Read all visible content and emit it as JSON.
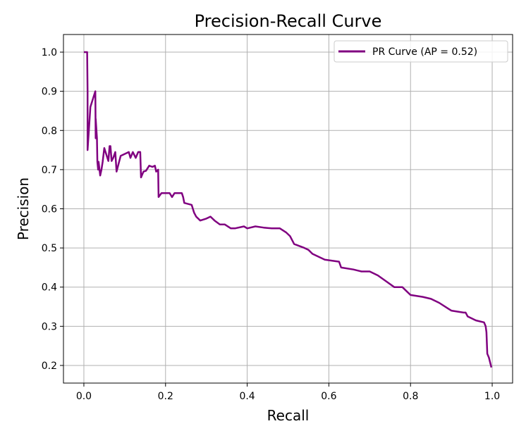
{
  "chart_data": {
    "type": "line",
    "title": "Precision-Recall Curve",
    "xlabel": "Recall",
    "ylabel": "Precision",
    "xlim": [
      -0.05,
      1.05
    ],
    "ylim": [
      0.155,
      1.045
    ],
    "xticks": [
      0.0,
      0.2,
      0.4,
      0.6,
      0.8,
      1.0
    ],
    "xtick_labels": [
      "0.0",
      "0.2",
      "0.4",
      "0.6",
      "0.8",
      "1.0"
    ],
    "yticks": [
      0.2,
      0.3,
      0.4,
      0.5,
      0.6,
      0.7,
      0.8,
      0.9,
      1.0
    ],
    "ytick_labels": [
      "0.2",
      "0.3",
      "0.4",
      "0.5",
      "0.6",
      "0.7",
      "0.8",
      "0.9",
      "1.0"
    ],
    "grid": true,
    "legend_position": "top-right",
    "colors": {
      "series": "#800080",
      "grid": "#b0b0b0",
      "axes": "#000000"
    },
    "series": [
      {
        "name": "PR Curve (AP = 0.52)",
        "x": [
          0.0,
          0.008,
          0.009,
          0.009,
          0.016,
          0.028,
          0.029,
          0.029,
          0.032,
          0.033,
          0.035,
          0.036,
          0.04,
          0.043,
          0.046,
          0.05,
          0.06,
          0.063,
          0.065,
          0.068,
          0.072,
          0.077,
          0.08,
          0.09,
          0.11,
          0.114,
          0.12,
          0.127,
          0.133,
          0.138,
          0.14,
          0.146,
          0.152,
          0.16,
          0.168,
          0.174,
          0.177,
          0.182,
          0.183,
          0.19,
          0.21,
          0.216,
          0.222,
          0.24,
          0.243,
          0.246,
          0.264,
          0.27,
          0.275,
          0.285,
          0.3,
          0.31,
          0.32,
          0.333,
          0.345,
          0.36,
          0.37,
          0.392,
          0.4,
          0.42,
          0.44,
          0.46,
          0.48,
          0.495,
          0.505,
          0.515,
          0.54,
          0.55,
          0.56,
          0.59,
          0.625,
          0.63,
          0.66,
          0.68,
          0.7,
          0.72,
          0.74,
          0.76,
          0.78,
          0.79,
          0.8,
          0.83,
          0.85,
          0.87,
          0.9,
          0.93,
          0.935,
          0.94,
          0.96,
          0.98,
          0.984,
          0.986,
          0.988,
          0.992,
          0.998
        ],
        "y": [
          1.0,
          1.0,
          0.9,
          0.75,
          0.86,
          0.9,
          0.78,
          0.83,
          0.78,
          0.72,
          0.7,
          0.72,
          0.685,
          0.7,
          0.72,
          0.755,
          0.722,
          0.76,
          0.76,
          0.722,
          0.73,
          0.745,
          0.695,
          0.735,
          0.745,
          0.73,
          0.745,
          0.73,
          0.745,
          0.745,
          0.68,
          0.695,
          0.697,
          0.71,
          0.707,
          0.71,
          0.695,
          0.7,
          0.63,
          0.64,
          0.64,
          0.63,
          0.64,
          0.64,
          0.63,
          0.615,
          0.61,
          0.59,
          0.58,
          0.57,
          0.575,
          0.58,
          0.57,
          0.56,
          0.56,
          0.55,
          0.55,
          0.555,
          0.55,
          0.555,
          0.552,
          0.55,
          0.55,
          0.54,
          0.53,
          0.51,
          0.5,
          0.495,
          0.485,
          0.47,
          0.465,
          0.45,
          0.445,
          0.44,
          0.44,
          0.43,
          0.415,
          0.4,
          0.4,
          0.39,
          0.38,
          0.375,
          0.37,
          0.36,
          0.34,
          0.335,
          0.335,
          0.325,
          0.315,
          0.31,
          0.3,
          0.285,
          0.23,
          0.22,
          0.195
        ]
      }
    ]
  }
}
